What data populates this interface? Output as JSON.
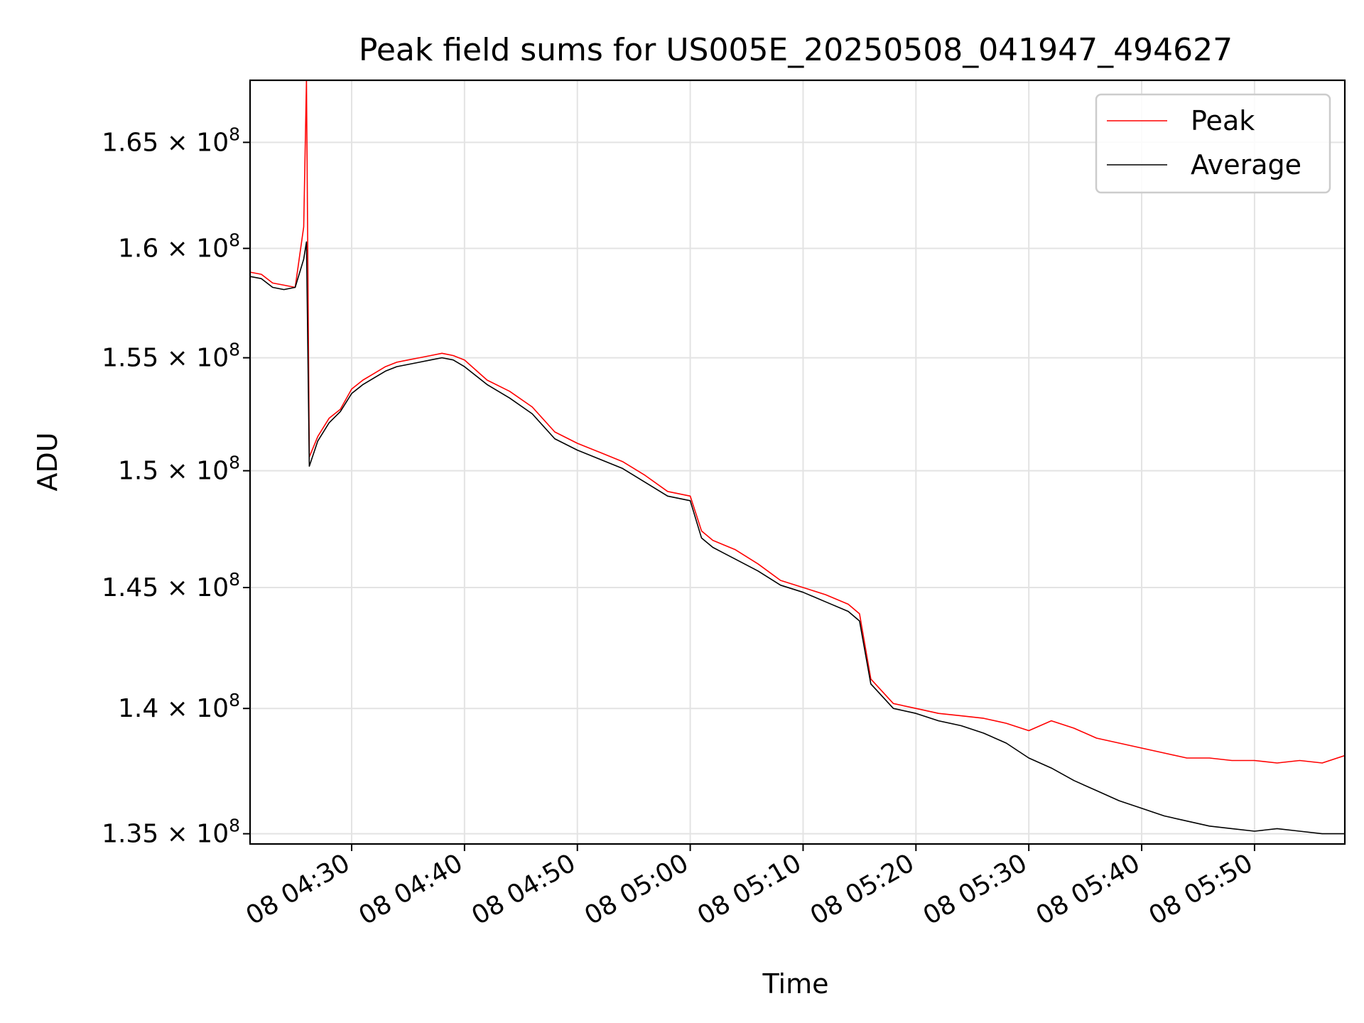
{
  "chart_data": {
    "type": "line",
    "title": "Peak field sums for US005E_20250508_041947_494627",
    "xlabel": "Time",
    "ylabel": "ADU",
    "y_scale": "log",
    "xlim": [
      "08 04:21",
      "08 05:58"
    ],
    "ylim": [
      134600000,
      168000000
    ],
    "grid": true,
    "legend_position": "top-right",
    "x_ticks": [
      "08 04:30",
      "08 04:40",
      "08 04:50",
      "08 05:00",
      "08 05:10",
      "08 05:20",
      "08 05:30",
      "08 05:40",
      "08 05:50"
    ],
    "y_ticks": [
      {
        "value": 135000000,
        "label": "1.35 × 10",
        "exp": "8"
      },
      {
        "value": 140000000,
        "label": "1.4 × 10",
        "exp": "8"
      },
      {
        "value": 145000000,
        "label": "1.45 × 10",
        "exp": "8"
      },
      {
        "value": 150000000,
        "label": "1.5 × 10",
        "exp": "8"
      },
      {
        "value": 155000000,
        "label": "1.55 × 10",
        "exp": "8"
      },
      {
        "value": 160000000,
        "label": "1.6 × 10",
        "exp": "8"
      },
      {
        "value": 165000000,
        "label": "1.65 × 10",
        "exp": "8"
      }
    ],
    "series": [
      {
        "name": "Peak",
        "color": "#ff0000",
        "points": [
          [
            "08 04:21",
            158900000
          ],
          [
            "08 04:22",
            158800000
          ],
          [
            "08 04:23",
            158400000
          ],
          [
            "08 04:24",
            158300000
          ],
          [
            "08 04:25",
            158200000
          ],
          [
            "08 04:25:45",
            161000000
          ],
          [
            "08 04:26",
            168000000
          ],
          [
            "08 04:26:15",
            150600000
          ],
          [
            "08 04:27",
            151500000
          ],
          [
            "08 04:28",
            152300000
          ],
          [
            "08 04:29",
            152700000
          ],
          [
            "08 04:30",
            153600000
          ],
          [
            "08 04:31",
            154000000
          ],
          [
            "08 04:32",
            154300000
          ],
          [
            "08 04:33",
            154600000
          ],
          [
            "08 04:34",
            154800000
          ],
          [
            "08 04:35",
            154900000
          ],
          [
            "08 04:36",
            155000000
          ],
          [
            "08 04:37",
            155100000
          ],
          [
            "08 04:38",
            155200000
          ],
          [
            "08 04:39",
            155100000
          ],
          [
            "08 04:40",
            154900000
          ],
          [
            "08 04:42",
            154000000
          ],
          [
            "08 04:44",
            153500000
          ],
          [
            "08 04:46",
            152800000
          ],
          [
            "08 04:48",
            151700000
          ],
          [
            "08 04:50",
            151200000
          ],
          [
            "08 04:52",
            150800000
          ],
          [
            "08 04:54",
            150400000
          ],
          [
            "08 04:56",
            149800000
          ],
          [
            "08 04:58",
            149100000
          ],
          [
            "08 05:00",
            148900000
          ],
          [
            "08 05:01",
            147400000
          ],
          [
            "08 05:02",
            147000000
          ],
          [
            "08 05:04",
            146600000
          ],
          [
            "08 05:06",
            146000000
          ],
          [
            "08 05:08",
            145300000
          ],
          [
            "08 05:10",
            145000000
          ],
          [
            "08 05:12",
            144700000
          ],
          [
            "08 05:14",
            144300000
          ],
          [
            "08 05:15",
            143900000
          ],
          [
            "08 05:16",
            141200000
          ],
          [
            "08 05:18",
            140200000
          ],
          [
            "08 05:20",
            140000000
          ],
          [
            "08 05:22",
            139800000
          ],
          [
            "08 05:24",
            139700000
          ],
          [
            "08 05:26",
            139600000
          ],
          [
            "08 05:28",
            139400000
          ],
          [
            "08 05:30",
            139100000
          ],
          [
            "08 05:32",
            139500000
          ],
          [
            "08 05:34",
            139200000
          ],
          [
            "08 05:36",
            138800000
          ],
          [
            "08 05:38",
            138600000
          ],
          [
            "08 05:40",
            138400000
          ],
          [
            "08 05:42",
            138200000
          ],
          [
            "08 05:44",
            138000000
          ],
          [
            "08 05:46",
            138000000
          ],
          [
            "08 05:48",
            137900000
          ],
          [
            "08 05:50",
            137900000
          ],
          [
            "08 05:52",
            137800000
          ],
          [
            "08 05:54",
            137900000
          ],
          [
            "08 05:56",
            137800000
          ],
          [
            "08 05:58",
            138100000
          ]
        ]
      },
      {
        "name": "Average",
        "color": "#000000",
        "points": [
          [
            "08 04:21",
            158700000
          ],
          [
            "08 04:22",
            158600000
          ],
          [
            "08 04:23",
            158200000
          ],
          [
            "08 04:24",
            158100000
          ],
          [
            "08 04:25",
            158200000
          ],
          [
            "08 04:25:45",
            159500000
          ],
          [
            "08 04:26",
            160300000
          ],
          [
            "08 04:26:15",
            150200000
          ],
          [
            "08 04:27",
            151300000
          ],
          [
            "08 04:28",
            152100000
          ],
          [
            "08 04:29",
            152600000
          ],
          [
            "08 04:30",
            153400000
          ],
          [
            "08 04:31",
            153800000
          ],
          [
            "08 04:32",
            154100000
          ],
          [
            "08 04:33",
            154400000
          ],
          [
            "08 04:34",
            154600000
          ],
          [
            "08 04:35",
            154700000
          ],
          [
            "08 04:36",
            154800000
          ],
          [
            "08 04:37",
            154900000
          ],
          [
            "08 04:38",
            155000000
          ],
          [
            "08 04:39",
            154900000
          ],
          [
            "08 04:40",
            154600000
          ],
          [
            "08 04:42",
            153800000
          ],
          [
            "08 04:44",
            153200000
          ],
          [
            "08 04:46",
            152500000
          ],
          [
            "08 04:48",
            151400000
          ],
          [
            "08 04:50",
            150900000
          ],
          [
            "08 04:52",
            150500000
          ],
          [
            "08 04:54",
            150100000
          ],
          [
            "08 04:56",
            149500000
          ],
          [
            "08 04:58",
            148900000
          ],
          [
            "08 05:00",
            148700000
          ],
          [
            "08 05:01",
            147100000
          ],
          [
            "08 05:02",
            146700000
          ],
          [
            "08 05:04",
            146200000
          ],
          [
            "08 05:06",
            145700000
          ],
          [
            "08 05:08",
            145100000
          ],
          [
            "08 05:10",
            144800000
          ],
          [
            "08 05:12",
            144400000
          ],
          [
            "08 05:14",
            144000000
          ],
          [
            "08 05:15",
            143600000
          ],
          [
            "08 05:16",
            141000000
          ],
          [
            "08 05:18",
            140000000
          ],
          [
            "08 05:20",
            139800000
          ],
          [
            "08 05:22",
            139500000
          ],
          [
            "08 05:24",
            139300000
          ],
          [
            "08 05:26",
            139000000
          ],
          [
            "08 05:28",
            138600000
          ],
          [
            "08 05:30",
            138000000
          ],
          [
            "08 05:32",
            137600000
          ],
          [
            "08 05:34",
            137100000
          ],
          [
            "08 05:36",
            136700000
          ],
          [
            "08 05:38",
            136300000
          ],
          [
            "08 05:40",
            136000000
          ],
          [
            "08 05:42",
            135700000
          ],
          [
            "08 05:44",
            135500000
          ],
          [
            "08 05:46",
            135300000
          ],
          [
            "08 05:48",
            135200000
          ],
          [
            "08 05:50",
            135100000
          ],
          [
            "08 05:52",
            135200000
          ],
          [
            "08 05:54",
            135100000
          ],
          [
            "08 05:56",
            135000000
          ],
          [
            "08 05:58",
            135000000
          ]
        ]
      }
    ]
  }
}
